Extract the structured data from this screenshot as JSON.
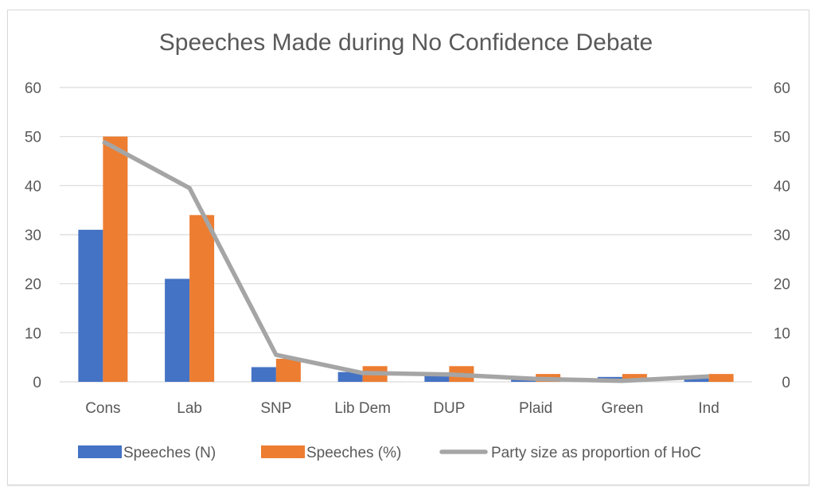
{
  "chart_data": {
    "type": "bar",
    "title": "Speeches Made during No Confidence Debate",
    "xlabel": "",
    "ylabel": "",
    "y2label": "",
    "ylim": [
      0,
      60
    ],
    "y2lim": [
      0,
      60
    ],
    "yticks": [
      "0",
      "10",
      "20",
      "30",
      "40",
      "50",
      "60"
    ],
    "y2ticks": [
      "0",
      "10",
      "20",
      "30",
      "40",
      "50",
      "60"
    ],
    "grid": true,
    "legend_position": "bottom",
    "categories": [
      "Cons",
      "Lab",
      "SNP",
      "Lib Dem",
      "DUP",
      "Plaid",
      "Green",
      "Ind"
    ],
    "series": [
      {
        "name": "Speeches (N)",
        "type": "bar",
        "color": "#4472C4",
        "values": [
          31,
          21,
          3,
          2,
          1.5,
          0.4,
          1,
          0.7
        ]
      },
      {
        "name": "Speeches (%)",
        "type": "bar",
        "color": "#ED7D31",
        "values": [
          50,
          34,
          4.7,
          3.2,
          3.2,
          1.6,
          1.6,
          1.6
        ]
      },
      {
        "name": "Party size as proportion of HoC",
        "type": "line",
        "color": "#A5A5A5",
        "values": [
          49,
          39.5,
          5.5,
          1.8,
          1.5,
          0.6,
          0.2,
          1.1
        ]
      }
    ]
  }
}
